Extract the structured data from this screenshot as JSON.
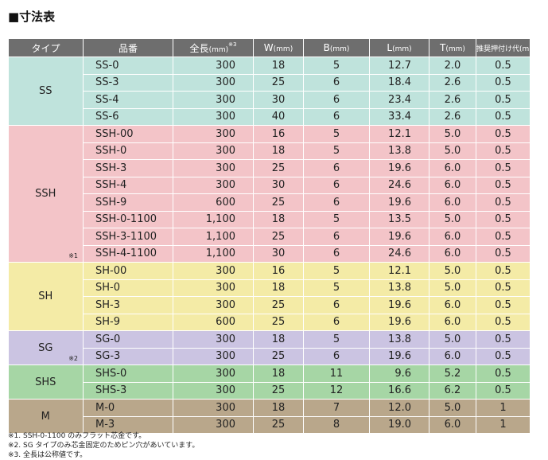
{
  "title": "■寸法表",
  "headers": {
    "type": "タイプ",
    "product": "品番",
    "length": "全長",
    "length_unit": "(mm)",
    "length_note": "※3",
    "w": "W",
    "w_unit": "(mm)",
    "b": "B",
    "b_unit": "(mm)",
    "l": "L",
    "l_unit": "(mm)",
    "t": "T",
    "t_unit": "(mm)",
    "crimp": "推奨押付け代",
    "crimp_unit": "(mm)"
  },
  "groups": [
    {
      "type": "SS",
      "note": "",
      "rows": [
        {
          "product": "SS-0",
          "length": "300",
          "w": "18",
          "b": "5",
          "l": "12.7",
          "t": "2.0",
          "crimp": "0.5"
        },
        {
          "product": "SS-3",
          "length": "300",
          "w": "25",
          "b": "6",
          "l": "18.4",
          "t": "2.6",
          "crimp": "0.5"
        },
        {
          "product": "SS-4",
          "length": "300",
          "w": "30",
          "b": "6",
          "l": "23.4",
          "t": "2.6",
          "crimp": "0.5"
        },
        {
          "product": "SS-6",
          "length": "300",
          "w": "40",
          "b": "6",
          "l": "33.4",
          "t": "2.6",
          "crimp": "0.5"
        }
      ]
    },
    {
      "type": "SSH",
      "note": "※1",
      "rows": [
        {
          "product": "SSH-00",
          "length": "300",
          "w": "16",
          "b": "5",
          "l": "12.1",
          "t": "5.0",
          "crimp": "0.5"
        },
        {
          "product": "SSH-0",
          "length": "300",
          "w": "18",
          "b": "5",
          "l": "13.8",
          "t": "5.0",
          "crimp": "0.5"
        },
        {
          "product": "SSH-3",
          "length": "300",
          "w": "25",
          "b": "6",
          "l": "19.6",
          "t": "6.0",
          "crimp": "0.5"
        },
        {
          "product": "SSH-4",
          "length": "300",
          "w": "30",
          "b": "6",
          "l": "24.6",
          "t": "6.0",
          "crimp": "0.5"
        },
        {
          "product": "SSH-9",
          "length": "600",
          "w": "25",
          "b": "6",
          "l": "19.6",
          "t": "6.0",
          "crimp": "0.5"
        },
        {
          "product": "SSH-0-1100",
          "length": "1,100",
          "w": "18",
          "b": "5",
          "l": "13.5",
          "t": "5.0",
          "crimp": "0.5"
        },
        {
          "product": "SSH-3-1100",
          "length": "1,100",
          "w": "25",
          "b": "6",
          "l": "19.6",
          "t": "6.0",
          "crimp": "0.5"
        },
        {
          "product": "SSH-4-1100",
          "length": "1,100",
          "w": "30",
          "b": "6",
          "l": "24.6",
          "t": "6.0",
          "crimp": "0.5"
        }
      ]
    },
    {
      "type": "SH",
      "note": "",
      "rows": [
        {
          "product": "SH-00",
          "length": "300",
          "w": "16",
          "b": "5",
          "l": "12.1",
          "t": "5.0",
          "crimp": "0.5"
        },
        {
          "product": "SH-0",
          "length": "300",
          "w": "18",
          "b": "5",
          "l": "13.8",
          "t": "5.0",
          "crimp": "0.5"
        },
        {
          "product": "SH-3",
          "length": "300",
          "w": "25",
          "b": "6",
          "l": "19.6",
          "t": "6.0",
          "crimp": "0.5"
        },
        {
          "product": "SH-9",
          "length": "600",
          "w": "25",
          "b": "6",
          "l": "19.6",
          "t": "6.0",
          "crimp": "0.5"
        }
      ]
    },
    {
      "type": "SG",
      "note": "※2",
      "rows": [
        {
          "product": "SG-0",
          "length": "300",
          "w": "18",
          "b": "5",
          "l": "13.8",
          "t": "5.0",
          "crimp": "0.5"
        },
        {
          "product": "SG-3",
          "length": "300",
          "w": "25",
          "b": "6",
          "l": "19.6",
          "t": "6.0",
          "crimp": "0.5"
        }
      ]
    },
    {
      "type": "SHS",
      "note": "",
      "rows": [
        {
          "product": "SHS-0",
          "length": "300",
          "w": "18",
          "b": "11",
          "l": "9.6",
          "t": "5.2",
          "crimp": "0.5"
        },
        {
          "product": "SHS-3",
          "length": "300",
          "w": "25",
          "b": "12",
          "l": "16.6",
          "t": "6.2",
          "crimp": "0.5"
        }
      ]
    },
    {
      "type": "M",
      "note": "",
      "rows": [
        {
          "product": "M-0",
          "length": "300",
          "w": "18",
          "b": "7",
          "l": "12.0",
          "t": "5.0",
          "crimp": "1"
        },
        {
          "product": "M-3",
          "length": "300",
          "w": "25",
          "b": "8",
          "l": "19.0",
          "t": "6.0",
          "crimp": "1"
        }
      ]
    }
  ],
  "footnotes": [
    "※1. SSH-0-1100 のみフラット芯金です。",
    "※2. SG タイプのみ芯金固定のためピン穴があいています。",
    "※3. 全長は公称値です。"
  ]
}
